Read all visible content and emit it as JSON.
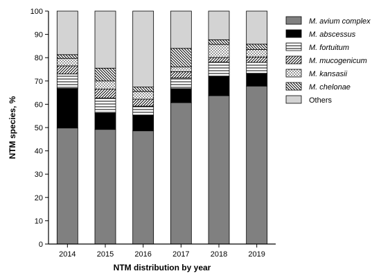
{
  "chart_data": {
    "type": "bar",
    "stacked": true,
    "categories": [
      "2014",
      "2015",
      "2016",
      "2017",
      "2018",
      "2019"
    ],
    "xlabel": "NTM distribution by year",
    "ylabel": "NTM species, %",
    "ylim": [
      0,
      100
    ],
    "yticks": [
      0,
      10,
      20,
      30,
      40,
      50,
      60,
      70,
      80,
      90,
      100
    ],
    "grid": false,
    "legend_position": "right",
    "series": [
      {
        "name": "M. avium complex",
        "pattern": "solid-gray",
        "values": [
          49.8,
          49.2,
          48.6,
          60.7,
          63.7,
          67.8
        ]
      },
      {
        "name": "M. abscessus",
        "pattern": "solid-black",
        "values": [
          17.0,
          7.0,
          6.8,
          6.0,
          8.4,
          5.5
        ]
      },
      {
        "name": "M. fortuitum",
        "pattern": "horizontal-lines",
        "values": [
          6.2,
          6.5,
          3.8,
          4.6,
          6.0,
          4.7
        ]
      },
      {
        "name": "M. mucogenicum",
        "pattern": "forward-diagonal",
        "values": [
          3.5,
          3.8,
          3.0,
          2.7,
          2.0,
          2.3
        ]
      },
      {
        "name": "M. kansasii",
        "pattern": "dots",
        "values": [
          3.2,
          3.5,
          3.3,
          2.0,
          5.6,
          3.2
        ]
      },
      {
        "name": "M. chelonae",
        "pattern": "backward-diagonal",
        "values": [
          1.6,
          5.5,
          1.9,
          8.0,
          2.0,
          2.3
        ]
      },
      {
        "name": "Others",
        "pattern": "solid-lightgray",
        "values": [
          18.7,
          24.5,
          32.6,
          16.0,
          12.3,
          14.2
        ]
      }
    ]
  },
  "colors": {
    "avium": "#808080",
    "abscessus": "#000000",
    "others": "#d3d3d3",
    "outline": "#000000"
  }
}
